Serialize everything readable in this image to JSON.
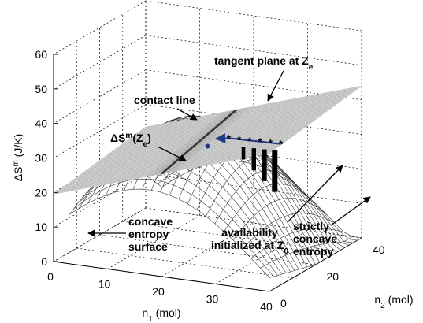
{
  "chart_data": {
    "type": "surface3d",
    "title": "",
    "xlabel": {
      "base": "n",
      "sub": "1",
      "unit": " (mol)"
    },
    "ylabel": {
      "base": "n",
      "sub": "2",
      "unit": " (mol)"
    },
    "zlabel": {
      "base": "ΔS",
      "sup": "m",
      "unit": " (J/K)"
    },
    "xlim": [
      0,
      40
    ],
    "ylim": [
      0,
      40
    ],
    "zlim": [
      0,
      60
    ],
    "xticks": [
      "0",
      "10",
      "20",
      "30",
      "40"
    ],
    "yticks": [
      "0",
      "20",
      "40"
    ],
    "zticks": [
      "0",
      "10",
      "20",
      "30",
      "40",
      "50",
      "60"
    ],
    "grid": true,
    "colors": {
      "path": "#1f3a8a",
      "plane": "#d4d4d4",
      "mesh": "#2b2b2b"
    },
    "contact_point": {
      "n1": 20,
      "n2": 20,
      "dS": 30
    },
    "start_point": {
      "n1": 40,
      "n2": 5,
      "dS": 44
    },
    "path_points": [
      {
        "n1": 40,
        "n2": 5
      },
      {
        "n1": 37,
        "n2": 7.5
      },
      {
        "n1": 34,
        "n2": 10
      },
      {
        "n1": 31,
        "n2": 12.5
      },
      {
        "n1": 28,
        "n2": 15
      },
      {
        "n1": 25,
        "n2": 17.5
      }
    ],
    "annotations": [
      {
        "id": "tangent",
        "text": "tangent plane at Z",
        "sub": "e"
      },
      {
        "id": "contact",
        "text": "contact line"
      },
      {
        "id": "dsze",
        "text": "ΔS",
        "sup": "m",
        "tail": "(Z",
        "sub": "e",
        "end": ")"
      },
      {
        "id": "concave1",
        "text": "concave"
      },
      {
        "id": "concave2",
        "text": "entropy"
      },
      {
        "id": "concave3",
        "text": "surface"
      },
      {
        "id": "avail1",
        "text": "availability"
      },
      {
        "id": "avail2",
        "text": "initialized at Z",
        "sub": "0"
      },
      {
        "id": "strict1",
        "text": "strictly"
      },
      {
        "id": "strict2",
        "text": "concave"
      },
      {
        "id": "strict3",
        "text": "entropy"
      }
    ]
  }
}
